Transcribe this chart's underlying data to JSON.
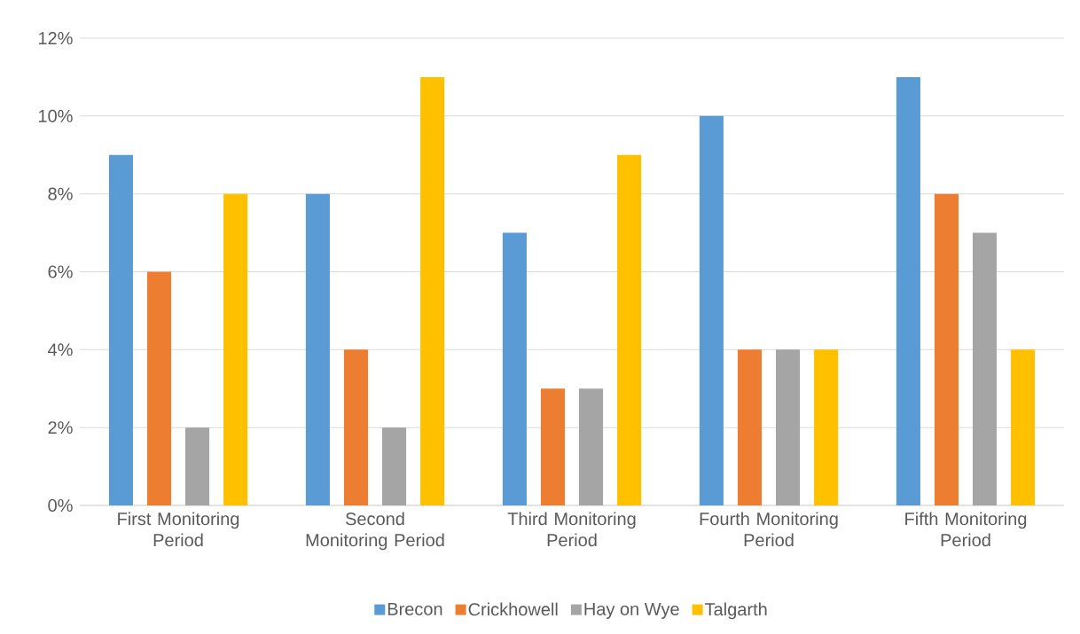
{
  "chart_data": {
    "type": "bar",
    "categories": [
      "First Monitoring Period",
      "Second Monitoring Period",
      "Third Monitoring Period",
      "Fourth Monitoring Period",
      "Fifth Monitoring Period"
    ],
    "series": [
      {
        "name": "Brecon",
        "color": "#5b9bd5",
        "values": [
          9,
          8,
          7,
          10,
          11
        ]
      },
      {
        "name": "Crickhowell",
        "color": "#ed7d31",
        "values": [
          6,
          4,
          3,
          4,
          8
        ]
      },
      {
        "name": "Hay on Wye",
        "color": "#a5a5a5",
        "values": [
          2,
          2,
          3,
          4,
          7
        ]
      },
      {
        "name": "Talgarth",
        "color": "#ffc000",
        "values": [
          8,
          11,
          9,
          4,
          4
        ]
      }
    ],
    "ylim": [
      0,
      12
    ],
    "yticks": [
      {
        "value": 0,
        "label": "0%"
      },
      {
        "value": 2,
        "label": "2%"
      },
      {
        "value": 4,
        "label": "4%"
      },
      {
        "value": 6,
        "label": "6%"
      },
      {
        "value": 8,
        "label": "8%"
      },
      {
        "value": 10,
        "label": "10%"
      },
      {
        "value": 12,
        "label": "12%"
      }
    ],
    "grid": "y",
    "legend": "bottom"
  }
}
